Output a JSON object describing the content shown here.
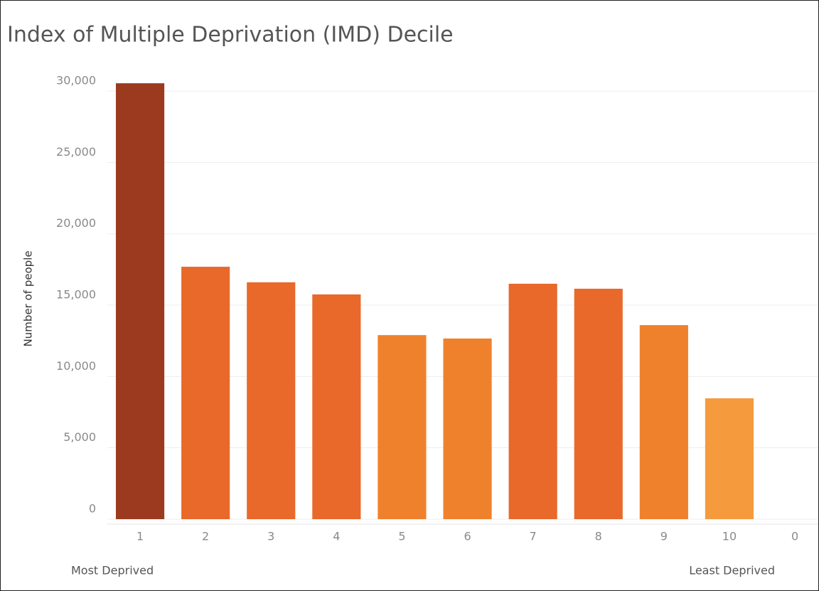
{
  "chart_data": {
    "type": "bar",
    "title": "Index of Multiple Deprivation (IMD) Decile",
    "y_label": "Number of people",
    "annotations": [
      "Most Deprived",
      "Least Deprived"
    ],
    "categories": [
      "1",
      "2",
      "3",
      "4",
      "5",
      "6",
      "7",
      "8",
      "9",
      "10",
      "0"
    ],
    "values": [
      30550,
      17690,
      16600,
      15750,
      12900,
      12660,
      16500,
      16150,
      13600,
      8470,
      null
    ],
    "colors": [
      "#9c3a1f",
      "#e8692a",
      "#e8692a",
      "#e8692a",
      "#f0812c",
      "#f0812c",
      "#e8692a",
      "#e8692a",
      "#f0812c",
      "#f59b3e",
      "#f59b3e"
    ],
    "ylim": [
      0,
      31600
    ],
    "yticks": [
      0,
      {
        "value": 5000,
        "label": "5,000"
      },
      {
        "value": 10000,
        "label": "10,000"
      },
      {
        "value": 15000,
        "label": "15,000"
      },
      {
        "value": 20000,
        "label": "20,000"
      },
      {
        "value": 25000,
        "label": "25,000"
      },
      {
        "value": 30000,
        "label": "30,000"
      }
    ],
    "grid": true
  }
}
